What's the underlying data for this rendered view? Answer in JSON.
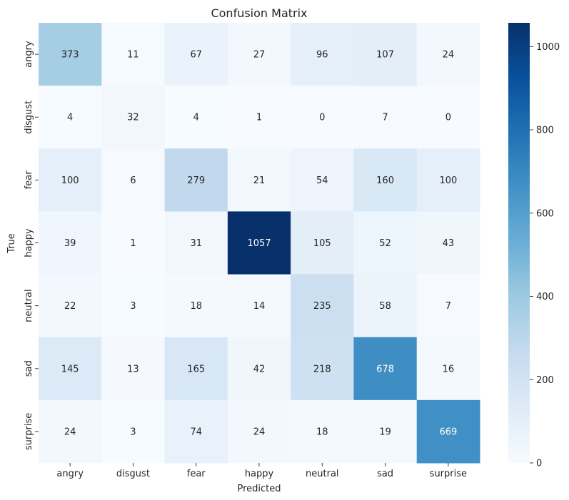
{
  "chart_data": {
    "type": "heatmap",
    "title": "Confusion Matrix",
    "xlabel": "Predicted",
    "ylabel": "True",
    "x_categories": [
      "angry",
      "disgust",
      "fear",
      "happy",
      "neutral",
      "sad",
      "surprise"
    ],
    "y_categories": [
      "angry",
      "disgust",
      "fear",
      "happy",
      "neutral",
      "sad",
      "surprise"
    ],
    "values": [
      [
        373,
        11,
        67,
        27,
        96,
        107,
        24
      ],
      [
        4,
        32,
        4,
        1,
        0,
        7,
        0
      ],
      [
        100,
        6,
        279,
        21,
        54,
        160,
        100
      ],
      [
        39,
        1,
        31,
        1057,
        105,
        52,
        43
      ],
      [
        22,
        3,
        18,
        14,
        235,
        58,
        7
      ],
      [
        145,
        13,
        165,
        42,
        218,
        678,
        16
      ],
      [
        24,
        3,
        74,
        24,
        18,
        19,
        669
      ]
    ],
    "colormap": "Blues",
    "color_range": [
      0,
      1057
    ],
    "colorbar_ticks": [
      0,
      200,
      400,
      600,
      800,
      1000
    ],
    "grid": false,
    "colorbar_position": "right"
  },
  "colors": {
    "low": "#f7fbff",
    "high": "#08306b",
    "text_dark": "#262626",
    "text_light": "#ffffff"
  }
}
